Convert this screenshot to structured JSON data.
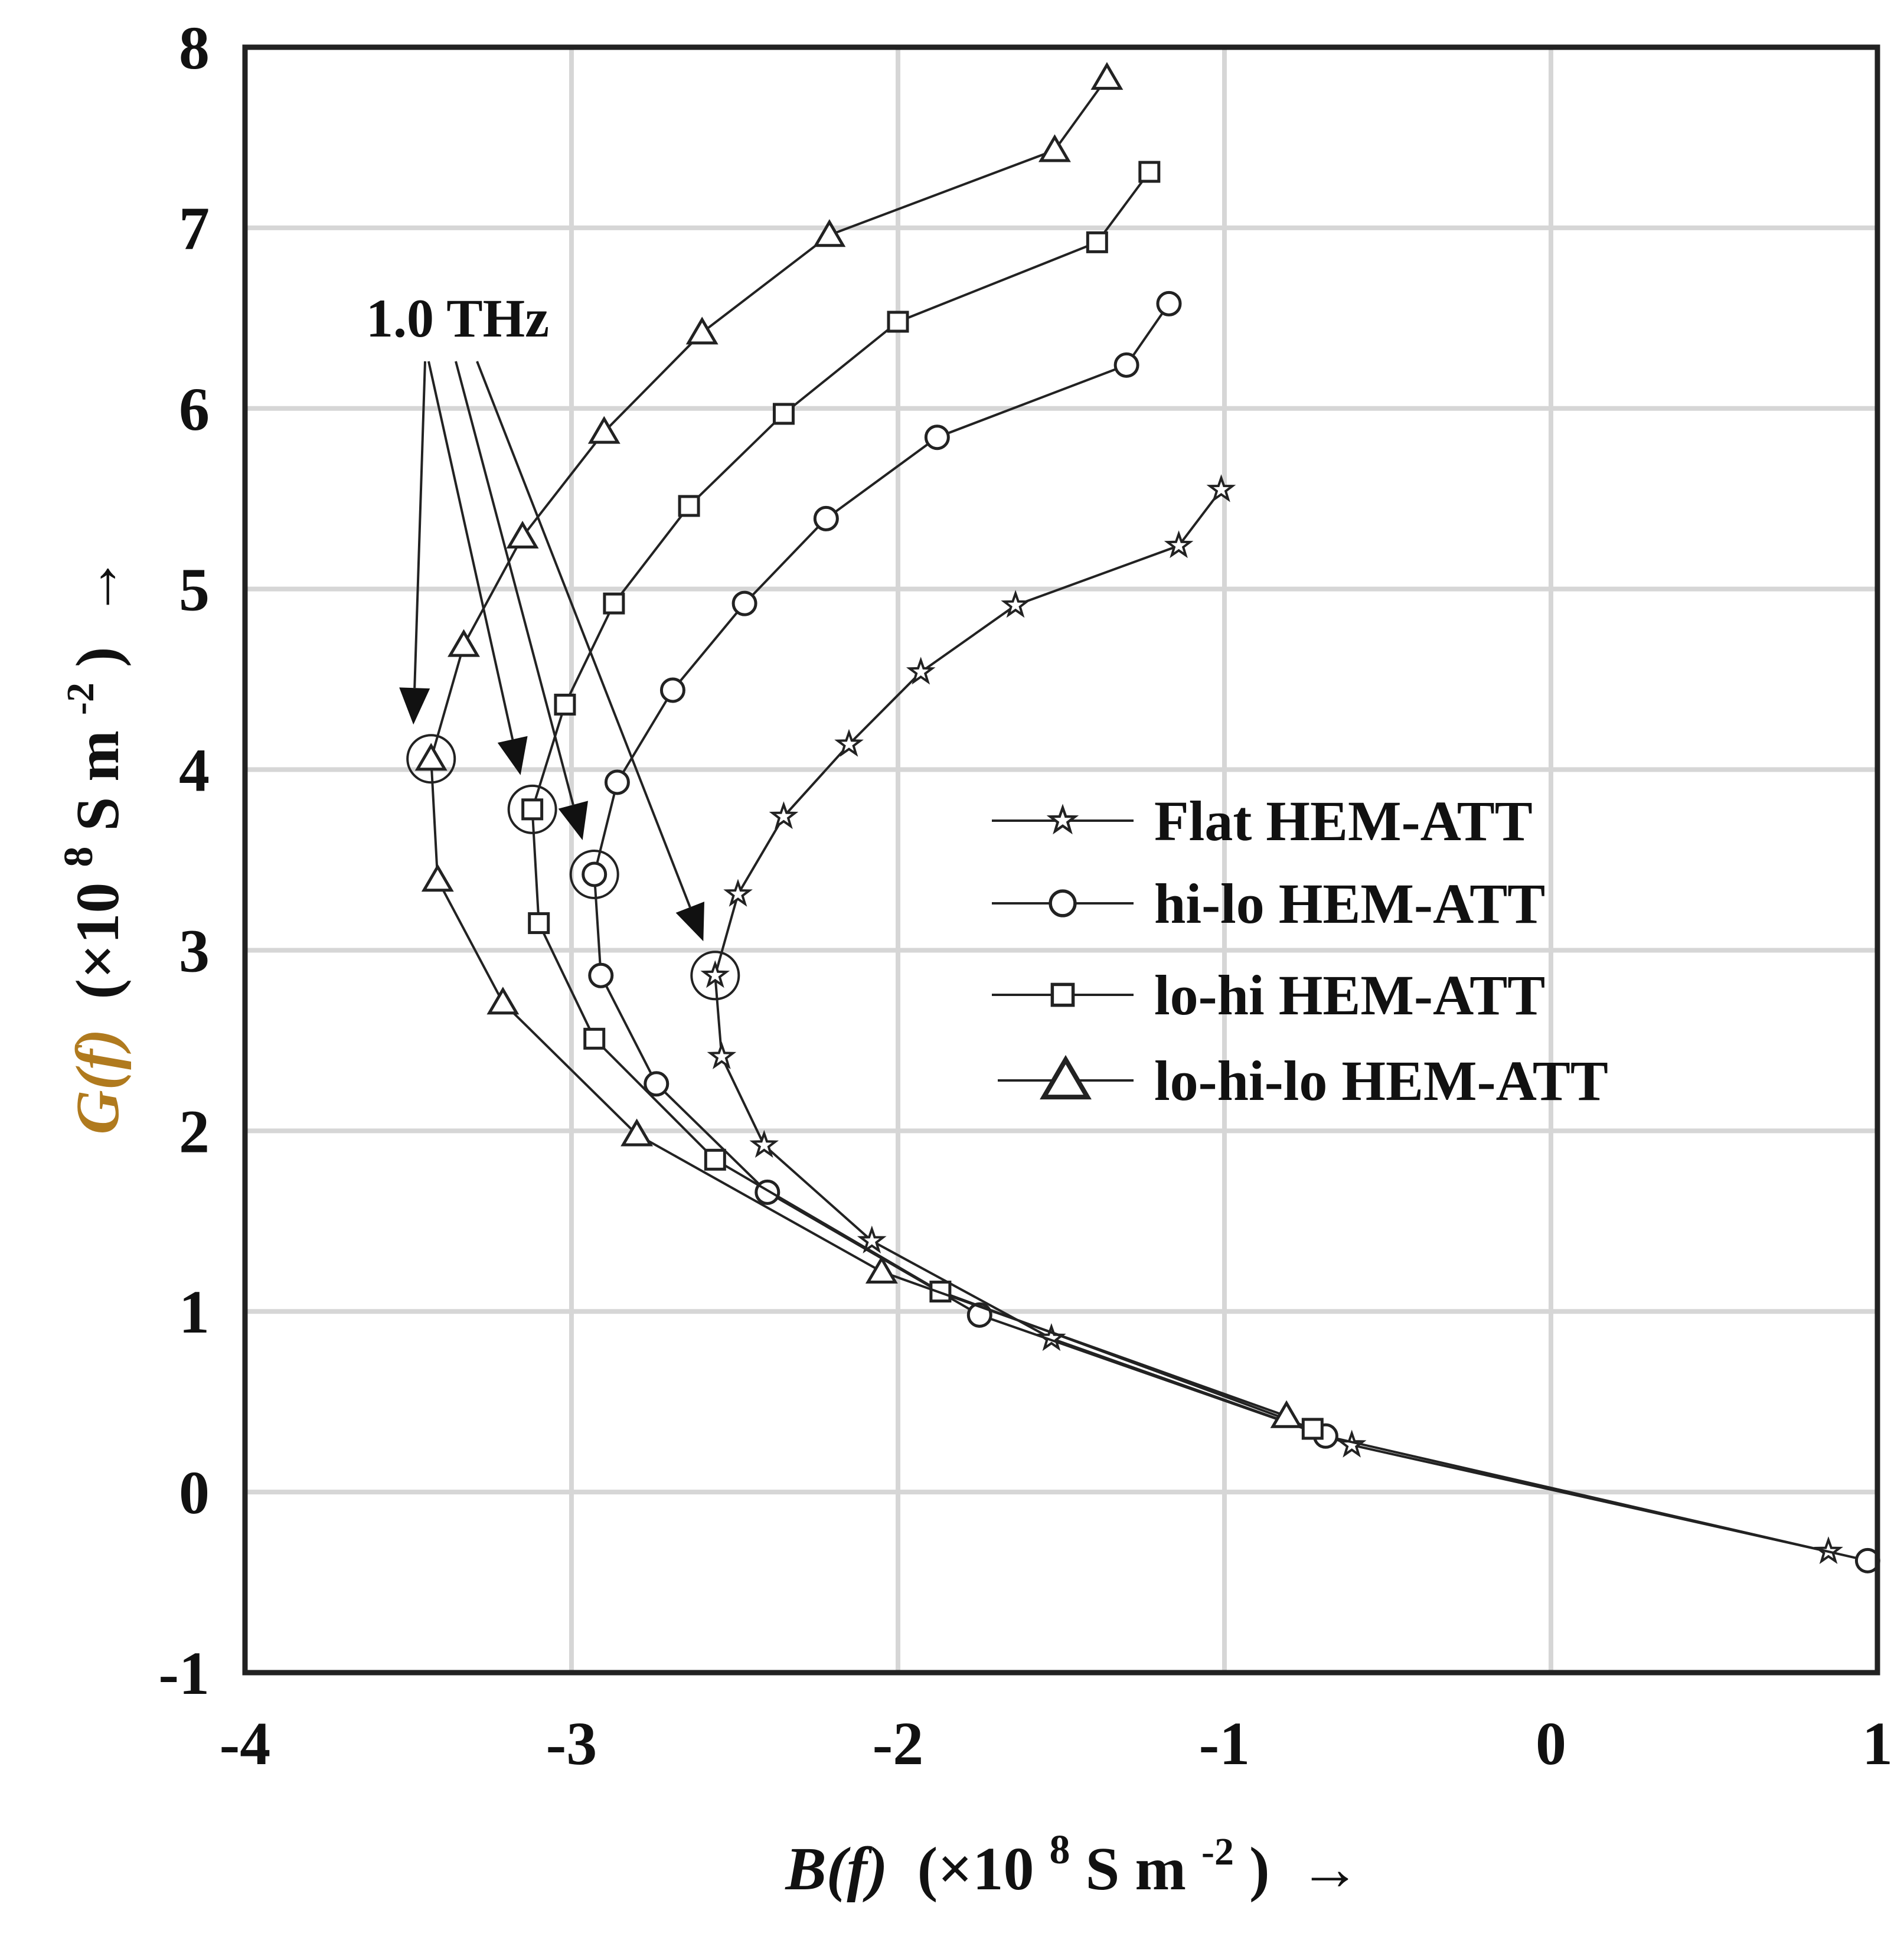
{
  "chart_data": {
    "type": "line",
    "title": "",
    "xlabel": {
      "func": "B(f)",
      "unit": "(×10",
      "exp": "8",
      "unit_rest": " S m",
      "unit_exp": "-2",
      "close": ")",
      "arrow": "→"
    },
    "ylabel": {
      "func": "G(f)",
      "unit": "(×10",
      "exp": "8",
      "unit_rest": "S m",
      "unit_exp": "-2",
      "close": ")",
      "arrow": "→"
    },
    "xlim": [
      -4,
      1
    ],
    "ylim": [
      -1,
      8
    ],
    "xticks": [
      "-4",
      "-3",
      "-2",
      "-1",
      "0",
      "1"
    ],
    "yticks": [
      "-1",
      "0",
      "1",
      "2",
      "3",
      "4",
      "5",
      "6",
      "7",
      "8"
    ],
    "grid": true,
    "legend_position": "center-right",
    "series": [
      {
        "name": "Flat HEM-ATT",
        "marker": "star",
        "x": [
          0.85,
          -0.61,
          -1.53,
          -2.08,
          -2.41,
          -2.54,
          -2.56,
          -2.49,
          -2.35,
          -2.15,
          -1.93,
          -1.64,
          -1.14,
          -1.01
        ],
        "y": [
          -0.33,
          0.26,
          0.85,
          1.39,
          1.92,
          2.41,
          2.86,
          3.31,
          3.74,
          4.14,
          4.54,
          4.91,
          5.24,
          5.55
        ]
      },
      {
        "name": "hi-lo HEM-ATT",
        "marker": "circle",
        "x": [
          0.97,
          -0.69,
          -1.75,
          -2.4,
          -2.74,
          -2.91,
          -2.93,
          -2.86,
          -2.69,
          -2.47,
          -2.22,
          -1.88,
          -1.3,
          -1.17
        ],
        "y": [
          -0.38,
          0.31,
          0.98,
          1.66,
          2.26,
          2.86,
          3.42,
          3.93,
          4.44,
          4.92,
          5.39,
          5.84,
          6.24,
          6.58
        ]
      },
      {
        "name": "lo-hi HEM-ATT",
        "marker": "square",
        "x": [
          -0.73,
          -1.87,
          -2.56,
          -2.93,
          -3.1,
          -3.12,
          -3.02,
          -2.87,
          -2.64,
          -2.35,
          -2.0,
          -1.39,
          -1.23
        ],
        "y": [
          0.35,
          1.11,
          1.84,
          2.51,
          3.15,
          3.78,
          4.36,
          4.92,
          5.46,
          5.97,
          6.48,
          6.92,
          7.31
        ]
      },
      {
        "name": "lo-hi-lo HEM-ATT",
        "marker": "triangle",
        "x": [
          -0.81,
          -2.05,
          -2.8,
          -3.21,
          -3.41,
          -3.43,
          -3.33,
          -3.15,
          -2.9,
          -2.6,
          -2.21,
          -1.52,
          -1.36
        ],
        "y": [
          0.42,
          1.22,
          1.98,
          2.71,
          3.39,
          4.06,
          4.69,
          5.29,
          5.87,
          6.42,
          6.96,
          7.43,
          7.83
        ]
      }
    ],
    "annotation": {
      "text": "1.0 THz",
      "targets": [
        {
          "x": -3.43,
          "y": 4.06
        },
        {
          "x": -3.12,
          "y": 3.78
        },
        {
          "x": -2.93,
          "y": 3.42
        },
        {
          "x": -2.56,
          "y": 2.86
        }
      ]
    }
  }
}
